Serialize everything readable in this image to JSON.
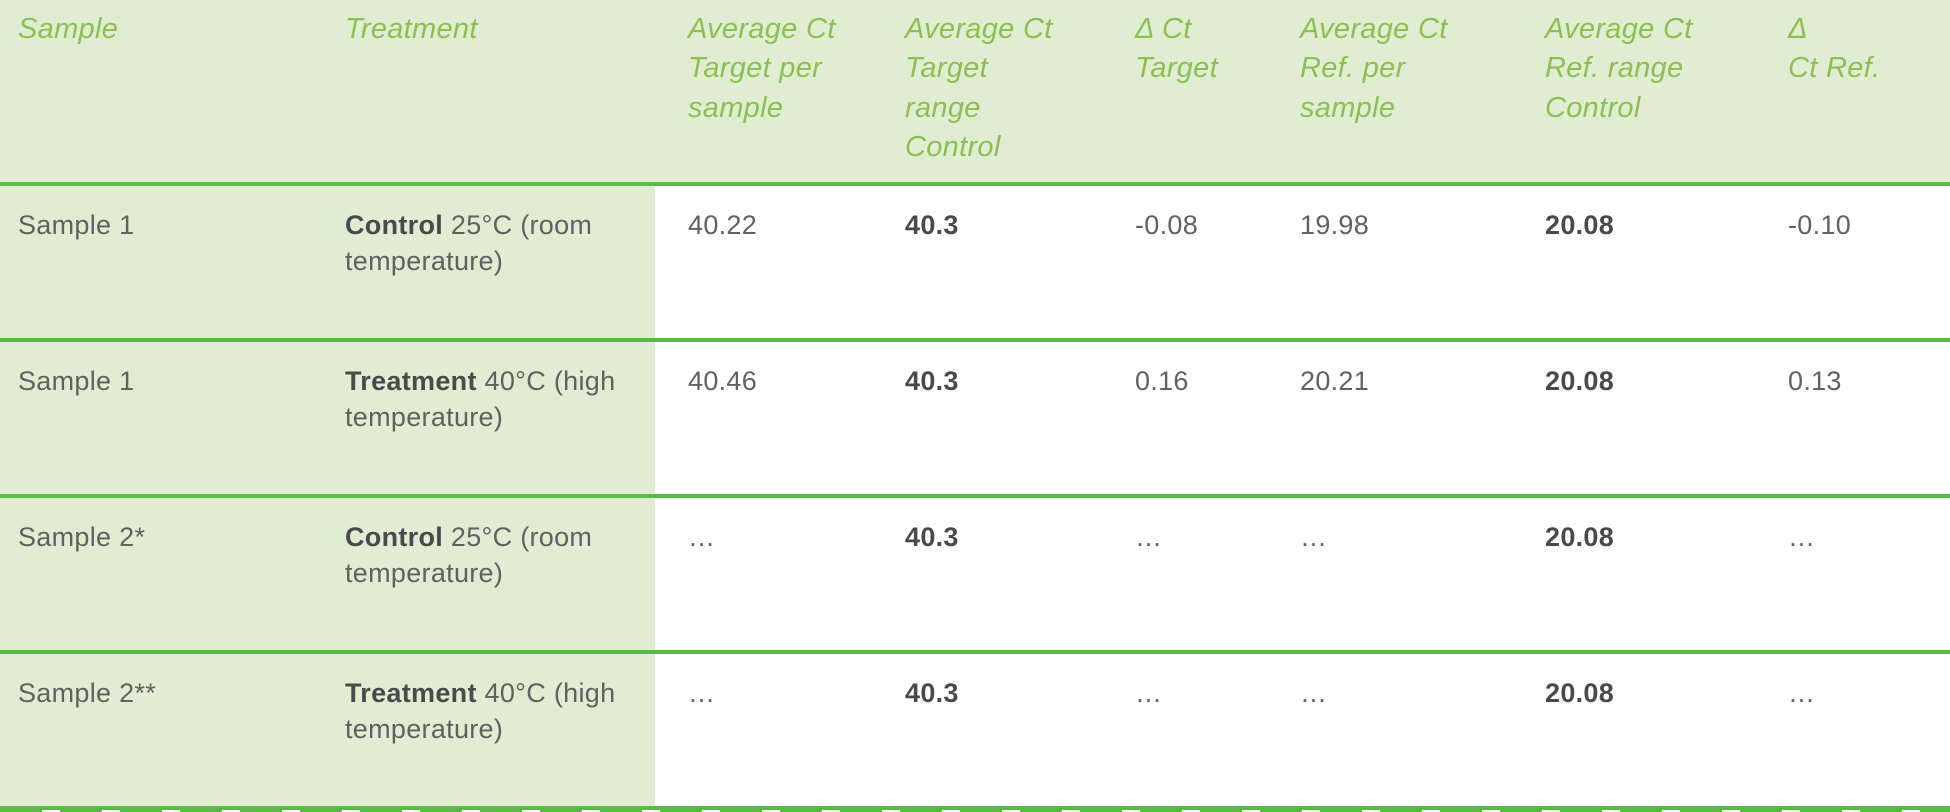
{
  "colors": {
    "header_text_green": "#8cc152",
    "row_line_green": "#58b947",
    "left_columns_bg": "#e0edd3",
    "data_text_gray": "#616161",
    "bold_text_gray": "#4a4a4a"
  },
  "table": {
    "header": {
      "sample": "Sample",
      "treatment": "Treatment",
      "avg_ct_target_sample": "Average Ct\n Target per\nsample",
      "avg_ct_target_range": "Average Ct\nTarget\nrange\nControl",
      "delta_ct_target": "Δ Ct\nTarget",
      "avg_ct_ref_sample": "Average Ct\nRef. per\nsample",
      "avg_ct_ref_range": "Average Ct\nRef. range\nControl",
      "delta_ct_ref": "Δ\nCt Ref."
    },
    "rows": [
      {
        "sample": "Sample 1",
        "treatment_bold": "Control",
        "treatment_rest": " 25°C (room temperature)",
        "avg_ct_target_sample": "40.22",
        "avg_ct_target_range": "40.3",
        "delta_ct_target": "-0.08",
        "avg_ct_ref_sample": "19.98",
        "avg_ct_ref_range": "20.08",
        "delta_ct_ref": "-0.10"
      },
      {
        "sample": "Sample 1",
        "treatment_bold": "Treatment",
        "treatment_rest": " 40°C (high temperature)",
        "avg_ct_target_sample": "40.46",
        "avg_ct_target_range": "40.3",
        "delta_ct_target": "0.16",
        "avg_ct_ref_sample": "20.21",
        "avg_ct_ref_range": "20.08",
        "delta_ct_ref": "0.13"
      },
      {
        "sample": "Sample 2*",
        "treatment_bold": "Control",
        "treatment_rest": " 25°C (room temperature)",
        "avg_ct_target_sample": "…",
        "avg_ct_target_range": "40.3",
        "delta_ct_target": "…",
        "avg_ct_ref_sample": "…",
        "avg_ct_ref_range": "20.08",
        "delta_ct_ref": "…"
      },
      {
        "sample": "Sample 2**",
        "treatment_bold": "Treatment",
        "treatment_rest": " 40°C (high temperature)",
        "avg_ct_target_sample": "…",
        "avg_ct_target_range": "40.3",
        "delta_ct_target": "…",
        "avg_ct_ref_sample": "…",
        "avg_ct_ref_range": "20.08",
        "delta_ct_ref": "…"
      }
    ]
  },
  "chart_data": {
    "type": "table",
    "columns": [
      "Sample",
      "Treatment",
      "Average Ct Target per sample",
      "Average Ct Target range Control",
      "Δ Ct Target",
      "Average Ct Ref. per sample",
      "Average Ct Ref. range Control",
      "Δ Ct Ref."
    ],
    "rows": [
      [
        "Sample 1",
        "Control 25°C (room temperature)",
        40.22,
        40.3,
        -0.08,
        19.98,
        20.08,
        -0.1
      ],
      [
        "Sample 1",
        "Treatment 40°C (high temperature)",
        40.46,
        40.3,
        0.16,
        20.21,
        20.08,
        0.13
      ],
      [
        "Sample 2*",
        "Control 25°C (room temperature)",
        "…",
        40.3,
        "…",
        "…",
        20.08,
        "…"
      ],
      [
        "Sample 2**",
        "Treatment 40°C (high temperature)",
        "…",
        40.3,
        "…",
        "…",
        20.08,
        "…"
      ]
    ]
  }
}
